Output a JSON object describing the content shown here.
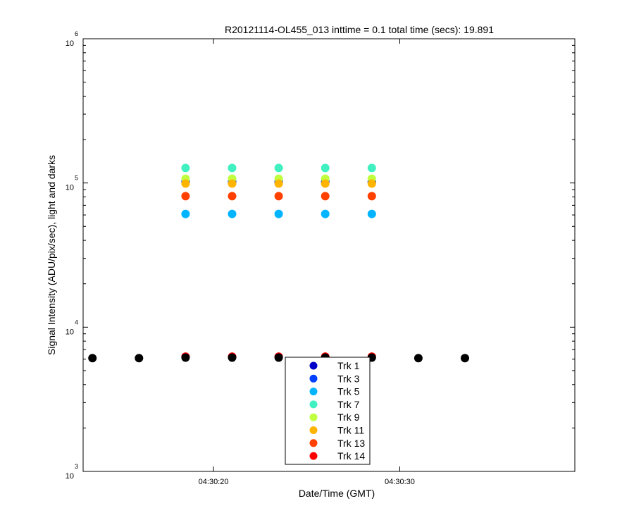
{
  "chart_data": {
    "type": "scatter",
    "title": "R20121114-OL455_013 inttime = 0.1 total time (secs): 19.891",
    "xlabel": "Date/Time (GMT)",
    "ylabel": "Signal Intensity (ADU/pix/sec), light and darks",
    "y_scale": "log",
    "ylim": [
      1000,
      1000000
    ],
    "xlim": [
      "04:30:13.0",
      "04:30:39.4"
    ],
    "x_ticks": [
      "04:30:20",
      "04:30:30"
    ],
    "y_ticks": [
      {
        "base": "10",
        "exp": "3"
      },
      {
        "base": "10",
        "exp": "4"
      },
      {
        "base": "10",
        "exp": "5"
      },
      {
        "base": "10",
        "exp": "6"
      }
    ],
    "legend_position": "bottom-center",
    "series": [
      {
        "name": "Trk 1",
        "color": "#0000c8",
        "x": [
          "04:30:18.5",
          "04:30:21.0",
          "04:30:23.5",
          "04:30:26.0",
          "04:30:28.5"
        ],
        "y": [
          102000,
          102000,
          102000,
          102000,
          102000
        ]
      },
      {
        "name": "Trk 3",
        "color": "#0040ff",
        "x": [
          "04:30:18.5",
          "04:30:21.0",
          "04:30:23.5",
          "04:30:26.0",
          "04:30:28.5"
        ],
        "y": [
          101000,
          101000,
          101000,
          101000,
          101000
        ]
      },
      {
        "name": "Trk 5",
        "color": "#00b4ff",
        "x": [
          "04:30:18.5",
          "04:30:21.0",
          "04:30:23.5",
          "04:30:26.0",
          "04:30:28.5"
        ],
        "y": [
          61000,
          61000,
          61000,
          61000,
          61000
        ]
      },
      {
        "name": "Trk 7",
        "color": "#40f0c0",
        "x": [
          "04:30:18.5",
          "04:30:21.0",
          "04:30:23.5",
          "04:30:26.0",
          "04:30:28.5"
        ],
        "y": [
          127000,
          127000,
          127000,
          127000,
          127000
        ]
      },
      {
        "name": "Trk 9",
        "color": "#c0ff40",
        "x": [
          "04:30:18.5",
          "04:30:21.0",
          "04:30:23.5",
          "04:30:26.0",
          "04:30:28.5"
        ],
        "y": [
          107000,
          107000,
          107000,
          107000,
          107000
        ]
      },
      {
        "name": "Trk 11",
        "color": "#ffb400",
        "x": [
          "04:30:18.5",
          "04:30:21.0",
          "04:30:23.5",
          "04:30:26.0",
          "04:30:28.5"
        ],
        "y": [
          99000,
          99000,
          99000,
          99000,
          99000
        ]
      },
      {
        "name": "Trk 13",
        "color": "#ff4000",
        "x": [
          "04:30:18.5",
          "04:30:21.0",
          "04:30:23.5",
          "04:30:26.0",
          "04:30:28.5"
        ],
        "y": [
          81000,
          81000,
          81000,
          81000,
          81000
        ]
      },
      {
        "name": "Trk 14",
        "color": "#ff0000",
        "x": [
          "04:30:18.5",
          "04:30:21.0",
          "04:30:23.5",
          "04:30:26.0",
          "04:30:28.5"
        ],
        "y": [
          6250,
          6250,
          6250,
          6250,
          6250
        ]
      },
      {
        "color": "#000000",
        "x": [
          "04:30:13.5",
          "04:30:16.0",
          "04:30:18.5",
          "04:30:21.0",
          "04:30:23.5",
          "04:30:26.0",
          "04:30:28.5",
          "04:30:31.0",
          "04:30:33.5"
        ],
        "y": [
          6100,
          6100,
          6150,
          6150,
          6150,
          6150,
          6150,
          6100,
          6100
        ]
      }
    ]
  }
}
